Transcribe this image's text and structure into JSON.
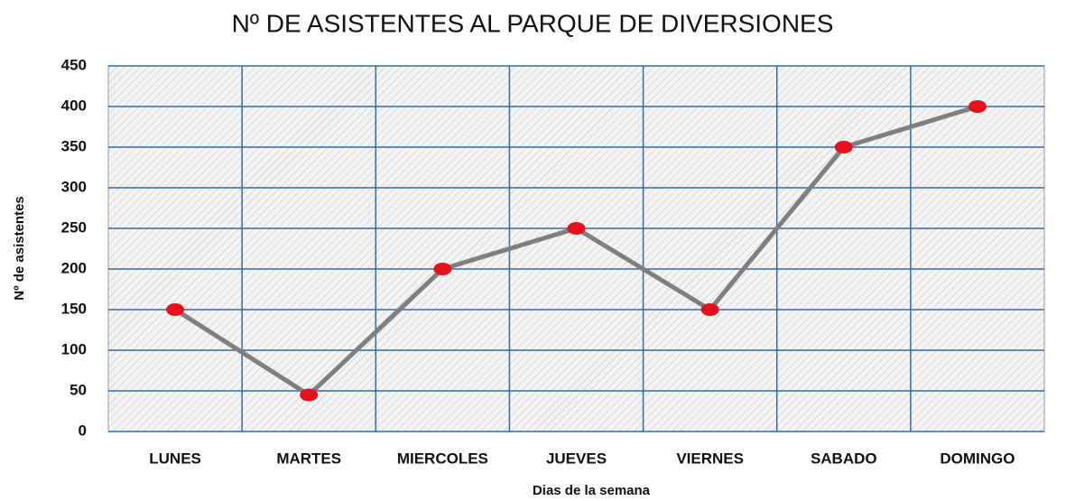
{
  "chart_data": {
    "type": "line",
    "title": "Nº DE ASISTENTES AL PARQUE DE DIVERSIONES",
    "x_label": "Dias de la semana",
    "y_label": "Nº de asistentes",
    "categories": [
      "LUNES",
      "MARTES",
      "MIERCOLES",
      "JUEVES",
      "VIERNES",
      "SABADO",
      "DOMINGO"
    ],
    "series": [
      {
        "name": "Nº de asistentes",
        "color": "#7f7f7f",
        "marker_color": "#e8101a",
        "values": [
          150,
          45,
          200,
          250,
          150,
          350,
          400
        ]
      }
    ],
    "ylim": [
      0,
      450
    ],
    "yticks": [
      0,
      50,
      100,
      150,
      200,
      250,
      300,
      350,
      400,
      450
    ],
    "grid": true,
    "grid_color": "#2e6da4"
  }
}
